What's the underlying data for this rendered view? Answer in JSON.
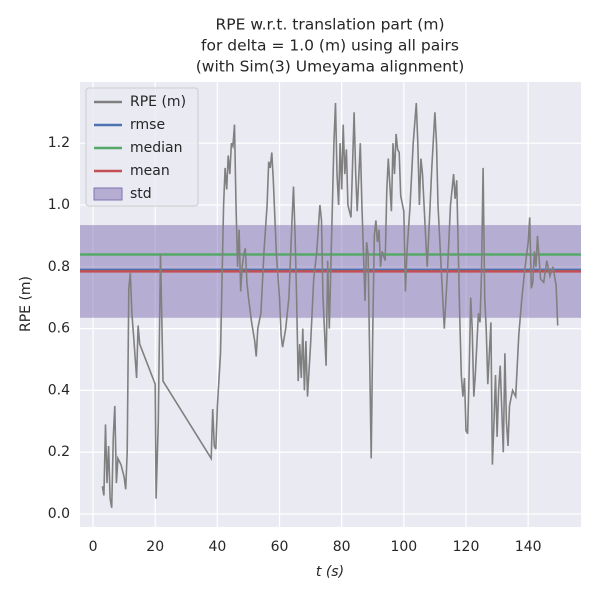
{
  "chart_data": {
    "type": "line",
    "title": [
      "RPE w.r.t. translation part (m)",
      "for delta = 1.0 (m) using all pairs",
      "(with Sim(3) Umeyama alignment)"
    ],
    "x_label": "t (s)",
    "y_label": "RPE (m)",
    "xlim": [
      -4.2,
      157
    ],
    "ylim": [
      -0.042,
      1.398
    ],
    "xticks": [
      0,
      20,
      40,
      60,
      80,
      100,
      120,
      140
    ],
    "yticks": [
      {
        "value": 0,
        "label": "0.0"
      },
      0.2,
      0.4,
      0.6,
      0.8,
      {
        "value": 1,
        "label": "1.0"
      },
      1.2
    ],
    "grid": true,
    "legend": "upper left",
    "series": [
      {
        "name": "RPE (m)",
        "color": "#808080",
        "x": [
          3,
          3.5,
          4,
          4.5,
          5,
          5.5,
          6,
          6.5,
          7,
          7.5,
          8,
          9,
          10,
          10.5,
          11,
          11.5,
          12,
          12.5,
          13,
          14,
          14.5,
          15,
          20,
          20.3,
          21,
          21.7,
          22,
          22.5,
          38,
          38.5,
          39,
          39.5,
          40,
          41,
          42,
          42.5,
          43,
          43.5,
          44,
          44.5,
          45,
          45.5,
          46,
          46.5,
          47,
          47.5,
          48,
          48.5,
          49,
          49.5,
          50,
          51,
          52,
          52.5,
          53,
          54,
          55,
          56,
          56.5,
          57,
          57.5,
          58,
          59,
          60,
          60.5,
          61,
          62,
          63,
          64,
          64.5,
          65,
          65.5,
          66,
          66.5,
          67,
          67.5,
          68,
          68.5,
          69,
          70,
          71,
          72,
          73,
          73.5,
          74,
          75,
          75.5,
          76,
          77,
          77.5,
          78,
          78.5,
          79,
          79.5,
          80,
          80.5,
          81,
          81.5,
          82,
          83,
          84,
          84.5,
          85,
          86,
          86.5,
          87,
          87.5,
          88,
          88.5,
          89,
          89.5,
          90,
          90.5,
          91,
          91.5,
          92,
          92.5,
          93,
          94,
          94.5,
          95,
          96,
          96.5,
          97,
          97.5,
          98,
          98.5,
          99,
          100,
          100.5,
          101,
          102,
          103,
          104,
          104.5,
          105,
          105.5,
          106,
          107,
          107.5,
          108,
          109,
          110,
          110.5,
          111,
          112,
          113,
          114,
          115,
          116,
          116.5,
          117,
          118,
          118.5,
          119,
          119.5,
          120,
          120.5,
          121,
          121.5,
          122,
          122.5,
          123,
          124,
          124.5,
          125,
          125.5,
          126,
          126.5,
          127,
          128,
          128.5,
          129,
          129.5,
          130,
          130.5,
          131,
          132,
          132.5,
          133,
          133.5,
          134,
          135,
          136,
          137,
          138,
          139,
          140,
          140.5,
          141,
          141.5,
          142,
          142.5,
          143,
          144,
          145,
          146,
          147,
          148,
          149,
          149.5
        ],
        "values": [
          0.09,
          0.06,
          0.29,
          0.1,
          0.22,
          0.05,
          0.02,
          0.25,
          0.35,
          0.1,
          0.18,
          0.16,
          0.12,
          0.08,
          0.2,
          0.73,
          0.78,
          0.65,
          0.58,
          0.44,
          0.61,
          0.55,
          0.42,
          0.05,
          0.3,
          0.84,
          0.7,
          0.43,
          0.18,
          0.34,
          0.22,
          0.21,
          0.35,
          0.52,
          1.0,
          1.12,
          1.05,
          1.16,
          1.1,
          1.2,
          1.19,
          1.26,
          1.0,
          0.8,
          0.92,
          0.72,
          0.8,
          0.84,
          0.86,
          0.75,
          0.7,
          0.62,
          0.56,
          0.51,
          0.6,
          0.65,
          0.85,
          1.0,
          1.14,
          1.12,
          1.17,
          1.08,
          0.84,
          0.7,
          0.58,
          0.54,
          0.6,
          0.7,
          0.95,
          1.06,
          0.9,
          0.7,
          0.43,
          0.55,
          0.44,
          0.6,
          0.4,
          0.56,
          0.38,
          0.55,
          0.76,
          0.85,
          1.0,
          0.95,
          0.7,
          0.48,
          0.82,
          0.6,
          1.0,
          1.2,
          1.33,
          1.1,
          1.0,
          1.2,
          1.05,
          1.26,
          1.1,
          1.18,
          1.0,
          0.96,
          1.3,
          1.1,
          0.98,
          1.2,
          1.0,
          0.85,
          0.69,
          0.88,
          0.84,
          0.5,
          0.18,
          0.6,
          0.9,
          0.95,
          0.88,
          0.92,
          0.8,
          0.85,
          0.82,
          1.05,
          1.15,
          0.98,
          1.2,
          1.1,
          1.23,
          1.18,
          1.17,
          1.03,
          0.98,
          0.72,
          0.85,
          1.0,
          1.2,
          1.33,
          1.2,
          1.0,
          1.15,
          1.1,
          0.9,
          0.8,
          0.9,
          1.12,
          1.3,
          1.2,
          1.0,
          0.8,
          0.6,
          0.78,
          1.0,
          1.1,
          1.02,
          1.08,
          0.63,
          0.45,
          0.38,
          0.44,
          0.27,
          0.26,
          0.45,
          0.7,
          0.6,
          0.38,
          0.45,
          0.65,
          0.62,
          0.78,
          1.12,
          0.7,
          0.6,
          0.42,
          0.62,
          0.16,
          0.3,
          0.45,
          0.25,
          0.4,
          0.48,
          0.2,
          0.52,
          0.3,
          0.22,
          0.35,
          0.4,
          0.38,
          0.58,
          0.7,
          0.8,
          0.88,
          0.96,
          0.73,
          0.75,
          0.85,
          0.8,
          0.9,
          0.76,
          0.75,
          0.82,
          0.77,
          0.8,
          0.74,
          0.61
        ]
      }
    ],
    "stats": [
      {
        "name": "rmse",
        "color": "#4c72b0",
        "value": 0.79
      },
      {
        "name": "median",
        "color": "#55a868",
        "value": 0.84
      },
      {
        "name": "mean",
        "color": "#c44e52",
        "value": 0.785
      }
    ],
    "std": {
      "name": "std",
      "color": "#8172b2",
      "value": 0.15
    }
  }
}
